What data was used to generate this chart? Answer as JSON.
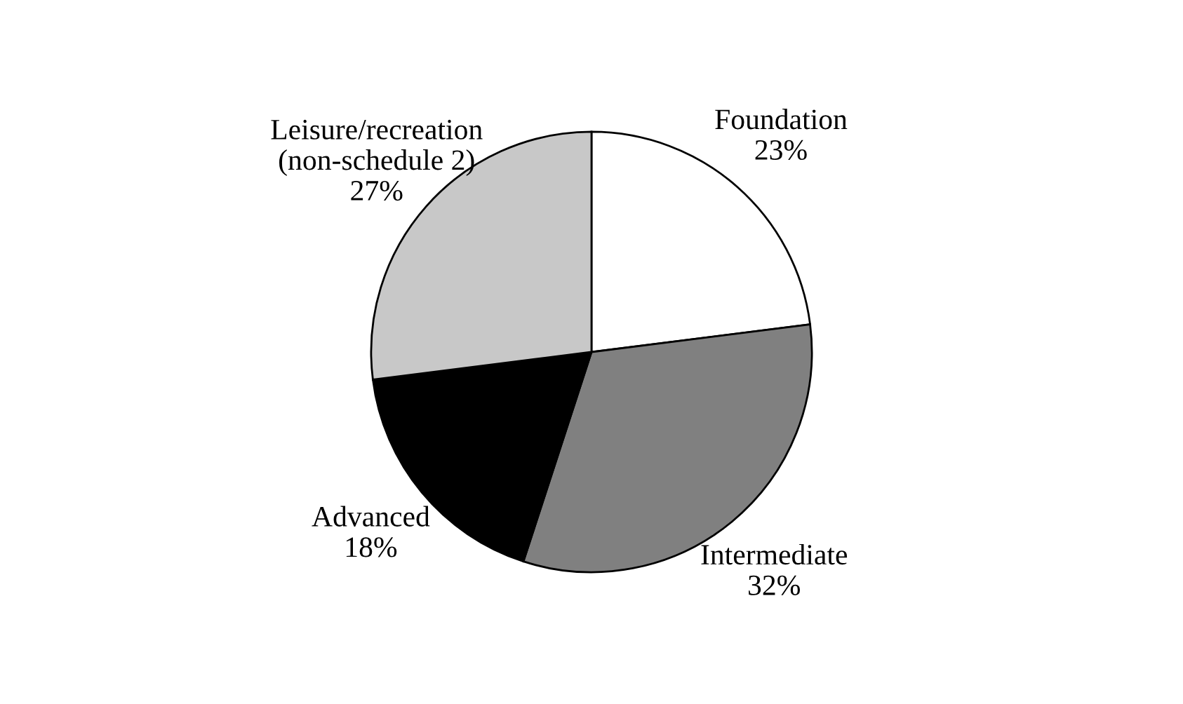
{
  "chart_data": {
    "type": "pie",
    "categories": [
      "Foundation",
      "Intermediate",
      "Advanced",
      "Leisure/recreation\n(non-schedule 2)"
    ],
    "values": [
      23,
      32,
      18,
      27
    ],
    "value_labels": [
      "23%",
      "32%",
      "18%",
      "27%"
    ],
    "colors": [
      "#ffffff",
      "#808080",
      "#000000",
      "#c8c8c8"
    ],
    "legend": false
  }
}
